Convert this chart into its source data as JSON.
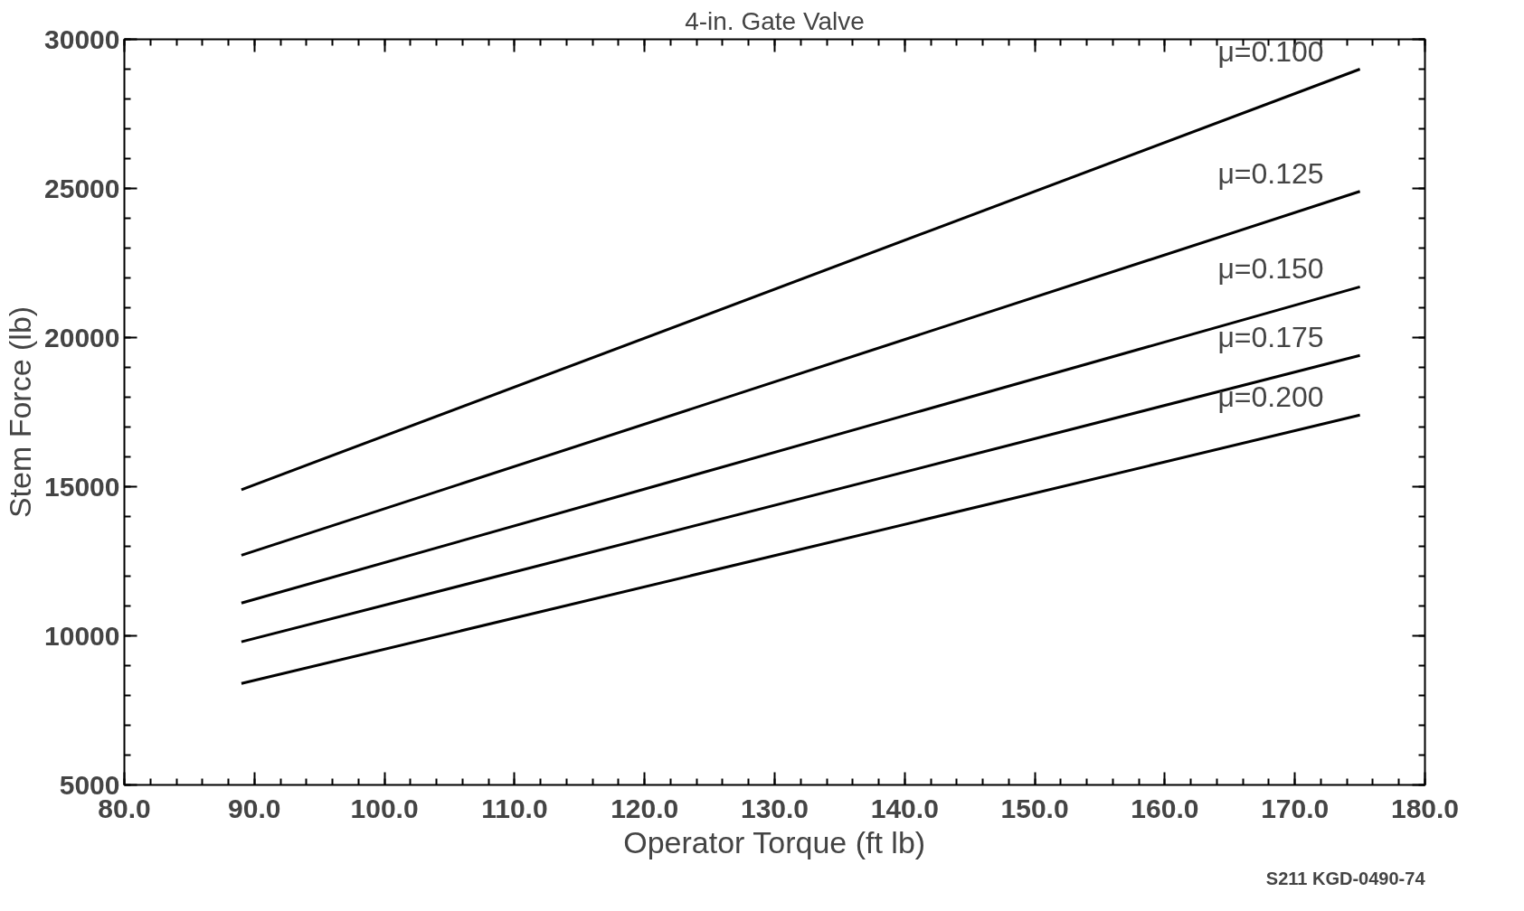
{
  "chart_data": {
    "type": "line",
    "title": "4-in. Gate Valve",
    "xlabel": "Operator Torque (ft lb)",
    "ylabel": "Stem Force (lb)",
    "xlim": [
      80,
      180
    ],
    "ylim": [
      5000,
      30000
    ],
    "xticks": [
      {
        "value": 80,
        "label": "80.0"
      },
      {
        "value": 90,
        "label": "90.0"
      },
      {
        "value": 100,
        "label": "100.0"
      },
      {
        "value": 110,
        "label": "110.0"
      },
      {
        "value": 120,
        "label": "120.0"
      },
      {
        "value": 130,
        "label": "130.0"
      },
      {
        "value": 140,
        "label": "140.0"
      },
      {
        "value": 150,
        "label": "150.0"
      },
      {
        "value": 160,
        "label": "160.0"
      },
      {
        "value": 170,
        "label": "170.0"
      },
      {
        "value": 180,
        "label": "180.0"
      }
    ],
    "yticks": [
      5000,
      10000,
      15000,
      20000,
      25000,
      30000
    ],
    "grid": false,
    "marker": "none",
    "line_style": "solid",
    "x": [
      89,
      175
    ],
    "series": [
      {
        "name": "μ=0.100",
        "color": "#000000",
        "values": [
          14900,
          29000
        ]
      },
      {
        "name": "μ=0.125",
        "color": "#000000",
        "values": [
          12700,
          24900
        ]
      },
      {
        "name": "μ=0.150",
        "color": "#000000",
        "values": [
          11100,
          21700
        ]
      },
      {
        "name": "μ=0.175",
        "color": "#000000",
        "values": [
          9800,
          19400
        ]
      },
      {
        "name": "μ=0.200",
        "color": "#000000",
        "values": [
          8400,
          17400
        ]
      }
    ],
    "annotations": [
      "S211 KGD-0490-74"
    ]
  }
}
